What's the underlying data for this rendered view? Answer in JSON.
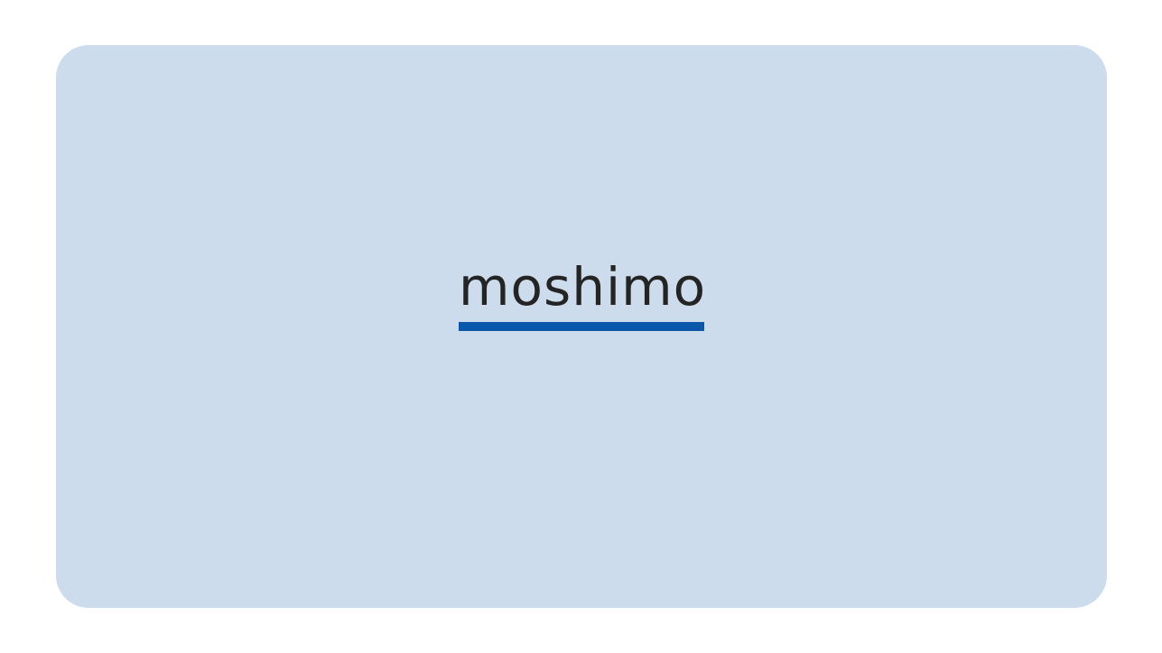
{
  "colors": {
    "page_background": "#ffffff",
    "card_background": "#cddcec",
    "logo_text": "#242424",
    "logo_underline": "#0a56a8"
  },
  "logo": {
    "text": "moshimo"
  }
}
